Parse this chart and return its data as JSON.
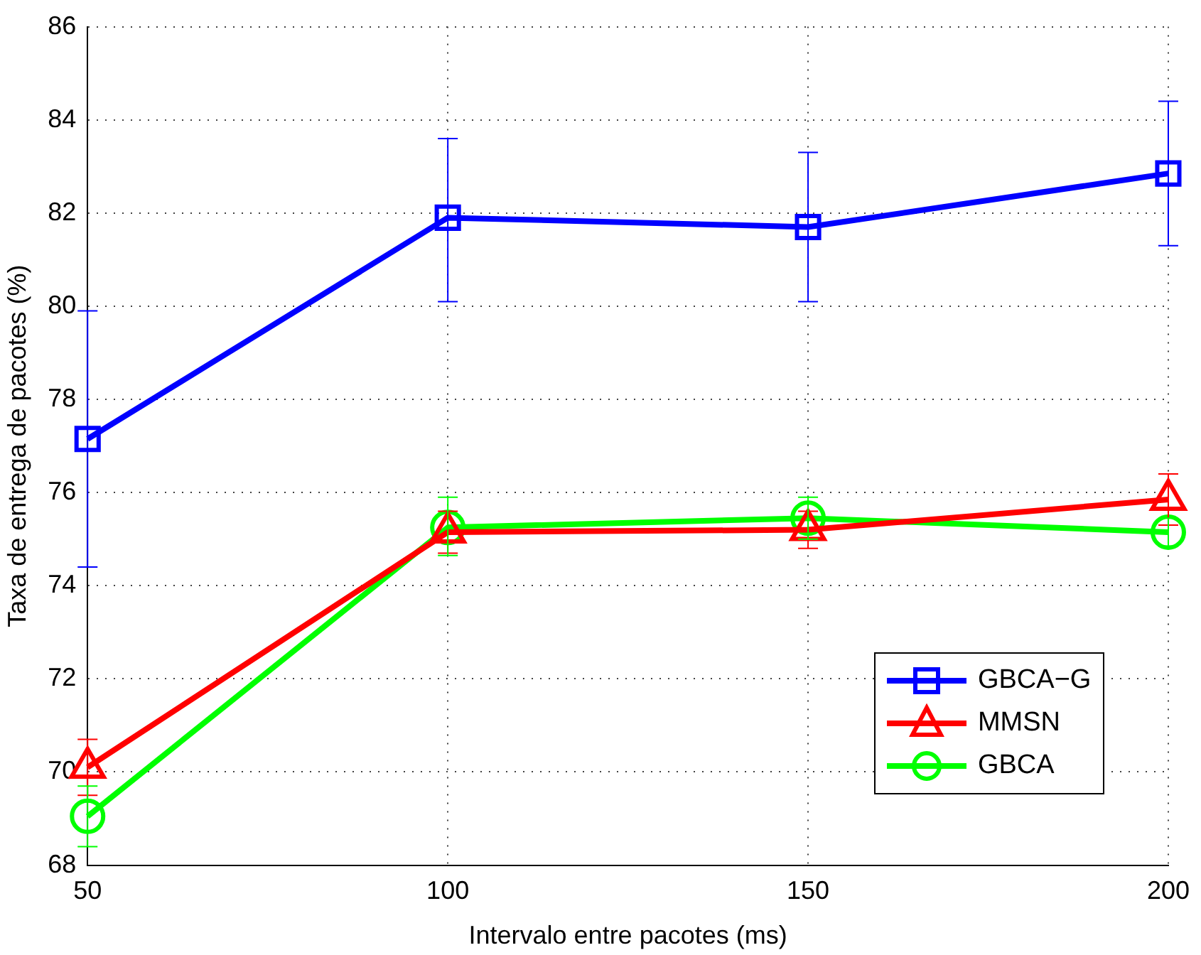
{
  "chart_data": {
    "type": "line",
    "xlabel": "Intervalo entre pacotes (ms)",
    "ylabel": "Taxa de entrega de pacotes (%)",
    "x": [
      50,
      100,
      150,
      200
    ],
    "xlim": [
      50,
      200
    ],
    "xticks": [
      50,
      100,
      150,
      200
    ],
    "ylim": [
      68,
      86
    ],
    "yticks": [
      68,
      70,
      72,
      74,
      76,
      78,
      80,
      82,
      84,
      86
    ],
    "grid": true,
    "legend": "bottom right",
    "line_style": "solid",
    "series": [
      {
        "name": "GBCA−G",
        "color": "#0000ff",
        "marker": "square",
        "values": [
          77.15,
          81.9,
          81.7,
          82.85
        ],
        "errors": [
          [
            74.4,
            79.9
          ],
          [
            80.1,
            83.6
          ],
          [
            80.1,
            83.3
          ],
          [
            81.3,
            84.4
          ]
        ]
      },
      {
        "name": "MMSN",
        "color": "#ff0000",
        "marker": "triangle",
        "values": [
          70.1,
          75.15,
          75.2,
          75.85
        ],
        "errors": [
          [
            69.5,
            70.7
          ],
          [
            74.7,
            75.6
          ],
          [
            74.8,
            75.6
          ],
          [
            75.3,
            76.4
          ]
        ]
      },
      {
        "name": "GBCA",
        "color": "#00ff00",
        "marker": "circle",
        "values": [
          69.05,
          75.25,
          75.45,
          75.15
        ],
        "errors": [
          [
            68.4,
            69.7
          ],
          [
            74.65,
            75.9
          ],
          [
            75.0,
            75.9
          ],
          [
            74.85,
            75.45
          ]
        ]
      }
    ]
  }
}
